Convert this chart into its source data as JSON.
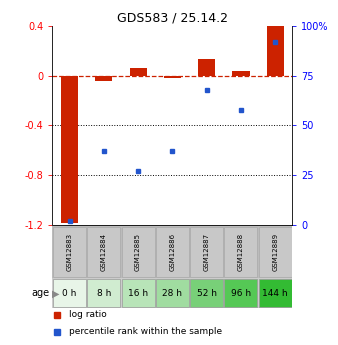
{
  "title": "GDS583 / 25.14.2",
  "samples": [
    "GSM12883",
    "GSM12884",
    "GSM12885",
    "GSM12886",
    "GSM12887",
    "GSM12888",
    "GSM12889"
  ],
  "ages": [
    "0 h",
    "8 h",
    "16 h",
    "28 h",
    "52 h",
    "96 h",
    "144 h"
  ],
  "log_ratio": [
    -1.18,
    -0.04,
    0.06,
    -0.02,
    0.13,
    0.04,
    0.4
  ],
  "percentile_rank": [
    2,
    37,
    27,
    37,
    68,
    58,
    92
  ],
  "ylim_left": [
    -1.2,
    0.4
  ],
  "ylim_right": [
    0,
    100
  ],
  "yticks_left": [
    0.4,
    0.0,
    -0.4,
    -0.8,
    -1.2
  ],
  "ytick_labels_left": [
    "0.4",
    "0",
    "-0.4",
    "-0.8",
    "-1.2"
  ],
  "yticks_right": [
    100,
    75,
    50,
    25,
    0
  ],
  "ytick_labels_right": [
    "100%",
    "75",
    "50",
    "25",
    "0"
  ],
  "bar_color": "#cc2200",
  "dot_color": "#2255cc",
  "dashed_line_color": "#cc2200",
  "age_colors": [
    "#e8f5e8",
    "#d0ecd0",
    "#b8e4b8",
    "#a0dca0",
    "#78d078",
    "#55c855",
    "#33bb33"
  ],
  "sample_box_color": "#c8c8c8",
  "sample_box_edge": "#aaaaaa",
  "legend_red_label": "log ratio",
  "legend_blue_label": "percentile rank within the sample",
  "bar_width": 0.5
}
